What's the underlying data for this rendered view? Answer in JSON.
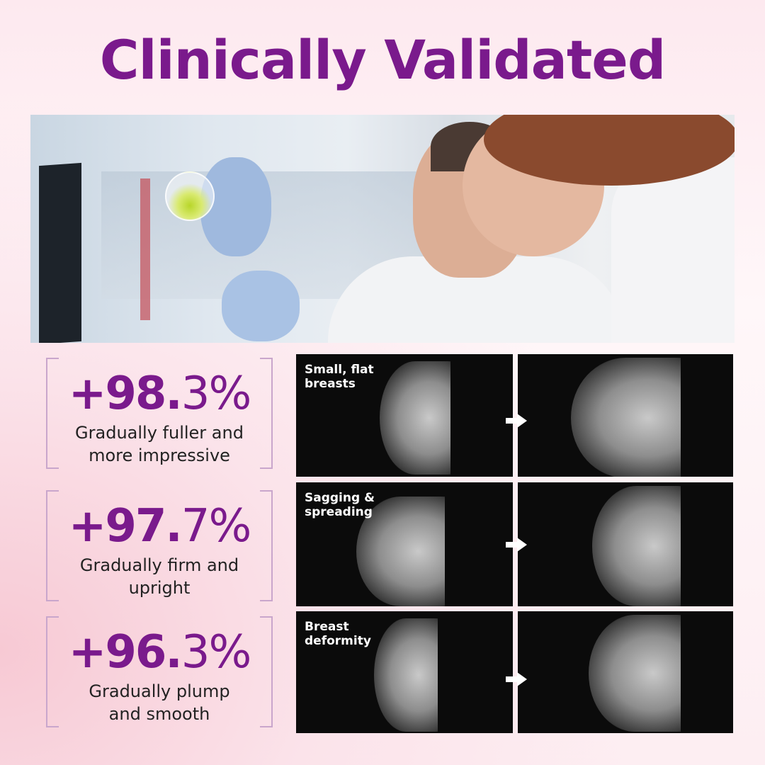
{
  "title": "Clinically Validated",
  "colors": {
    "accent": "#7a1a8c",
    "bracket": "#c9a6cc",
    "panel_bg": "#0b0b0b"
  },
  "stats": [
    {
      "value_bold": "+98.",
      "value_light": "3%",
      "description_1": "Gradually fuller and",
      "description_2": "more impressive"
    },
    {
      "value_bold": "+97.",
      "value_light": "7%",
      "description_1": "Gradually firm and",
      "description_2": "upright"
    },
    {
      "value_bold": "+96.",
      "value_light": "3%",
      "description_1": "Gradually plump",
      "description_2": "and smooth"
    }
  ],
  "comparisons": [
    {
      "label_1": "Small, flat",
      "label_2": "breasts"
    },
    {
      "label_1": "Sagging &",
      "label_2": "spreading"
    },
    {
      "label_1": "Breast",
      "label_2": "deformity"
    }
  ],
  "icons": {
    "arrow": "arrow-right-icon"
  }
}
